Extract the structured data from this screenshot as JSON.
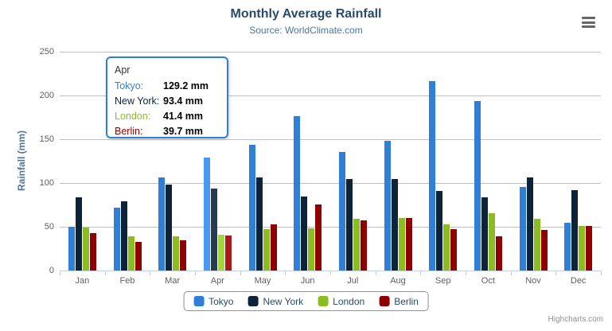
{
  "title": "Monthly Average Rainfall",
  "subtitle": "Source: WorldClimate.com",
  "credits": "Highcharts.com",
  "chart_data": {
    "type": "bar",
    "title": "Monthly Average Rainfall",
    "subtitle": "Source: WorldClimate.com",
    "categories": [
      "Jan",
      "Feb",
      "Mar",
      "Apr",
      "May",
      "Jun",
      "Jul",
      "Aug",
      "Sep",
      "Oct",
      "Nov",
      "Dec"
    ],
    "series": [
      {
        "name": "Tokyo",
        "color": "#2f7ed8",
        "values": [
          49.9,
          71.5,
          106.4,
          129.2,
          144.0,
          176.0,
          135.6,
          148.5,
          216.4,
          194.1,
          95.6,
          54.4
        ]
      },
      {
        "name": "New York",
        "color": "#0d233a",
        "values": [
          83.6,
          78.8,
          98.5,
          93.4,
          106.0,
          84.5,
          105.0,
          104.3,
          91.2,
          83.5,
          106.6,
          92.3
        ]
      },
      {
        "name": "London",
        "color": "#8bbc21",
        "values": [
          48.9,
          38.8,
          39.3,
          41.4,
          47.0,
          48.3,
          59.0,
          59.6,
          52.4,
          65.2,
          59.3,
          51.2
        ]
      },
      {
        "name": "Berlin",
        "color": "#910000",
        "values": [
          42.4,
          33.2,
          34.5,
          39.7,
          52.6,
          75.5,
          57.4,
          60.4,
          47.6,
          39.1,
          46.8,
          51.1
        ]
      }
    ],
    "xlabel": "",
    "ylabel": "Rainfall (mm)",
    "ylim": [
      0,
      250
    ],
    "y_ticks": [
      0,
      50,
      100,
      150,
      200,
      250
    ],
    "grid": true,
    "legend_position": "bottom",
    "hovered_category": "Apr"
  },
  "tooltip": {
    "header": "Apr",
    "border_color": "#2f7ed8",
    "rows": [
      {
        "label": "Tokyo:",
        "value": "129.2 mm",
        "color": "#2f7ed8"
      },
      {
        "label": "New York:",
        "value": "93.4 mm",
        "color": "#0d233a"
      },
      {
        "label": "London:",
        "value": "41.4 mm",
        "color": "#8bbc21"
      },
      {
        "label": "Berlin:",
        "value": "39.7 mm",
        "color": "#910000"
      }
    ]
  },
  "legend": {
    "items": [
      {
        "label": "Tokyo",
        "color": "#2f7ed8"
      },
      {
        "label": "New York",
        "color": "#0d233a"
      },
      {
        "label": "London",
        "color": "#8bbc21"
      },
      {
        "label": "Berlin",
        "color": "#910000"
      }
    ]
  },
  "colors": {
    "title": "#274b6d",
    "subtitle": "#4d759e",
    "axis_title": "#4d759e",
    "axis_label": "#606060",
    "axis_line": "#c0d0e0",
    "gridline": "#c0c0c0",
    "legend_text": "#274b6d",
    "legend_border": "#909090",
    "credits": "#909090",
    "menu_icon": "#666666"
  }
}
